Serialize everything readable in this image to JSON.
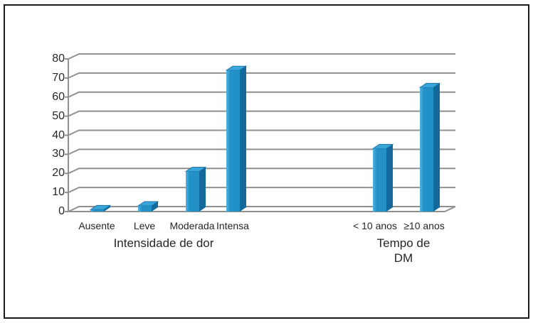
{
  "window": {
    "background": "#FFFFFF",
    "border_color": "#1A1A1A"
  },
  "chart_data": {
    "type": "bar",
    "style": "3d-column",
    "title": "",
    "xlabel": "",
    "ylabel": "",
    "ylim": [
      0,
      80
    ],
    "ytick_step": 10,
    "yticks": [
      0,
      10,
      20,
      30,
      40,
      50,
      60,
      70,
      80
    ],
    "grid": true,
    "legend": false,
    "groups": [
      {
        "label": "Intensidade de dor",
        "categories": [
          "Ausente",
          "Leve",
          "Moderada",
          "Intensa"
        ],
        "values": [
          1,
          3,
          21,
          74
        ]
      },
      {
        "label": "Tempo de\nDM",
        "categories": [
          "< 10 anos",
          "≥10 anos"
        ],
        "values": [
          33,
          65
        ]
      }
    ],
    "colors": {
      "bar_front": "#2191C8",
      "bar_highlight": "#54B4E0",
      "bar_side": "#14699C",
      "bar_top": "#38A6D8",
      "gridline": "#909090",
      "text": "#262626"
    }
  }
}
